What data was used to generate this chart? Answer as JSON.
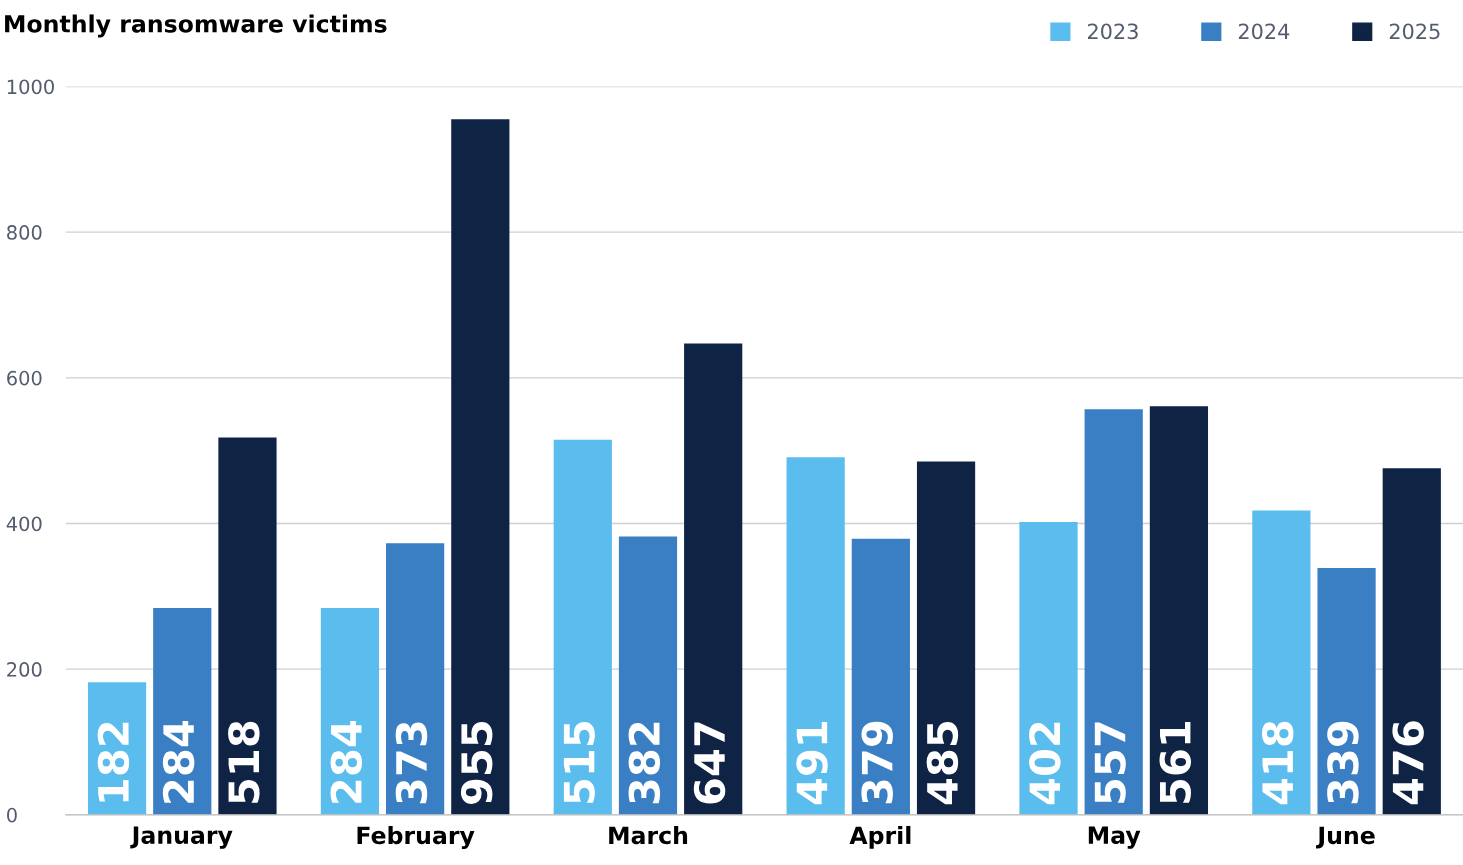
{
  "chart_data": {
    "type": "bar",
    "title": "Monthly ransomware victims",
    "categories": [
      "January",
      "February",
      "March",
      "April",
      "May",
      "June"
    ],
    "series": [
      {
        "name": "2023",
        "color": "#5bbcee",
        "values": [
          182,
          284,
          515,
          491,
          402,
          418
        ]
      },
      {
        "name": "2024",
        "color": "#3a7fc4",
        "values": [
          284,
          373,
          382,
          379,
          557,
          339
        ]
      },
      {
        "name": "2025",
        "color": "#0f2344",
        "values": [
          518,
          955,
          647,
          485,
          561,
          476
        ]
      }
    ],
    "ylim": [
      0,
      1000
    ],
    "yticks": [
      0,
      200,
      400,
      600,
      800,
      1000
    ],
    "grid": "y",
    "legend": "top right",
    "data_labels": true
  }
}
